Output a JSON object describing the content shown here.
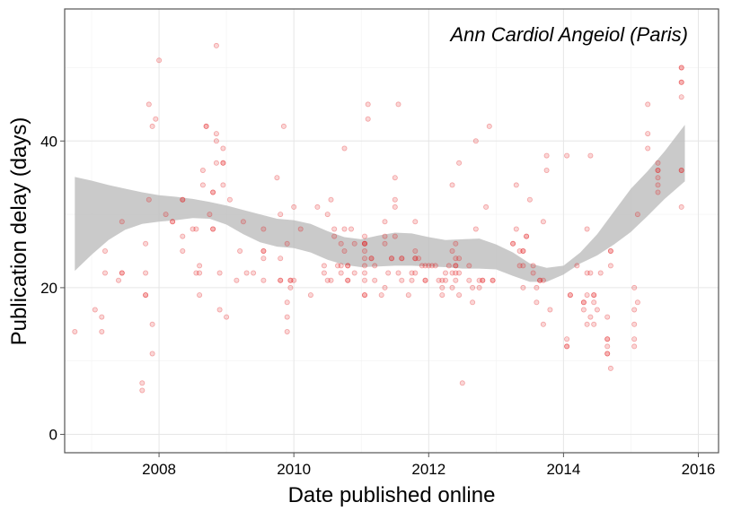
{
  "chart_data": {
    "type": "scatter",
    "annotation": "Ann Cardiol Angeiol (Paris)",
    "xlabel": "Date published online",
    "ylabel": "Publication delay (days)",
    "xlim": [
      2006.6,
      2016.3
    ],
    "ylim": [
      -2.5,
      58
    ],
    "x_ticks": [
      2008,
      2010,
      2012,
      2014,
      2016
    ],
    "y_ticks": [
      0,
      20,
      40
    ],
    "grid": true,
    "point_color": "#e31a1c",
    "band_color": "#bdbdbd",
    "panel_border_color": "#555555",
    "points": [
      [
        2006.75,
        14
      ],
      [
        2007.05,
        17
      ],
      [
        2007.15,
        16
      ],
      [
        2007.15,
        14
      ],
      [
        2007.2,
        25
      ],
      [
        2007.2,
        22
      ],
      [
        2007.4,
        21
      ],
      [
        2007.45,
        29
      ],
      [
        2007.45,
        22
      ],
      [
        2007.45,
        22
      ],
      [
        2007.75,
        7
      ],
      [
        2007.75,
        6
      ],
      [
        2007.8,
        26
      ],
      [
        2007.8,
        22
      ],
      [
        2007.8,
        19
      ],
      [
        2007.8,
        19
      ],
      [
        2007.85,
        32
      ],
      [
        2007.85,
        45
      ],
      [
        2007.9,
        42
      ],
      [
        2007.9,
        15
      ],
      [
        2007.9,
        11
      ],
      [
        2007.95,
        43
      ],
      [
        2008.0,
        51
      ],
      [
        2008.1,
        30
      ],
      [
        2008.2,
        29
      ],
      [
        2008.2,
        29
      ],
      [
        2008.35,
        32
      ],
      [
        2008.35,
        32
      ],
      [
        2008.35,
        27
      ],
      [
        2008.35,
        25
      ],
      [
        2008.5,
        28
      ],
      [
        2008.55,
        28
      ],
      [
        2008.55,
        22
      ],
      [
        2008.6,
        22
      ],
      [
        2008.6,
        19
      ],
      [
        2008.6,
        23
      ],
      [
        2008.65,
        34
      ],
      [
        2008.65,
        36
      ],
      [
        2008.7,
        42
      ],
      [
        2008.7,
        42
      ],
      [
        2008.75,
        30
      ],
      [
        2008.8,
        33
      ],
      [
        2008.8,
        33
      ],
      [
        2008.8,
        28
      ],
      [
        2008.8,
        28
      ],
      [
        2008.85,
        41
      ],
      [
        2008.85,
        37
      ],
      [
        2008.85,
        40
      ],
      [
        2008.85,
        53
      ],
      [
        2008.9,
        17
      ],
      [
        2008.9,
        22
      ],
      [
        2008.95,
        37
      ],
      [
        2008.95,
        37
      ],
      [
        2008.95,
        34
      ],
      [
        2008.95,
        39
      ],
      [
        2009.0,
        16
      ],
      [
        2009.05,
        32
      ],
      [
        2009.15,
        21
      ],
      [
        2009.2,
        25
      ],
      [
        2009.25,
        29
      ],
      [
        2009.3,
        22
      ],
      [
        2009.4,
        22
      ],
      [
        2009.55,
        28
      ],
      [
        2009.55,
        25
      ],
      [
        2009.55,
        25
      ],
      [
        2009.55,
        24
      ],
      [
        2009.55,
        21
      ],
      [
        2009.75,
        35
      ],
      [
        2009.8,
        30
      ],
      [
        2009.8,
        24
      ],
      [
        2009.8,
        21
      ],
      [
        2009.8,
        21
      ],
      [
        2009.85,
        42
      ],
      [
        2009.9,
        14
      ],
      [
        2009.9,
        16
      ],
      [
        2009.9,
        18
      ],
      [
        2009.9,
        26
      ],
      [
        2009.95,
        21
      ],
      [
        2009.95,
        21
      ],
      [
        2009.95,
        20
      ],
      [
        2010.0,
        31
      ],
      [
        2010.0,
        21
      ],
      [
        2010.1,
        28
      ],
      [
        2010.25,
        19
      ],
      [
        2010.35,
        31
      ],
      [
        2010.45,
        23
      ],
      [
        2010.45,
        22
      ],
      [
        2010.5,
        30
      ],
      [
        2010.5,
        21
      ],
      [
        2010.55,
        32
      ],
      [
        2010.55,
        21
      ],
      [
        2010.6,
        27
      ],
      [
        2010.6,
        28
      ],
      [
        2010.65,
        23
      ],
      [
        2010.7,
        22
      ],
      [
        2010.7,
        23
      ],
      [
        2010.7,
        26
      ],
      [
        2010.75,
        25
      ],
      [
        2010.75,
        28
      ],
      [
        2010.75,
        39
      ],
      [
        2010.8,
        23
      ],
      [
        2010.8,
        23
      ],
      [
        2010.8,
        21
      ],
      [
        2010.8,
        21
      ],
      [
        2010.85,
        28
      ],
      [
        2010.9,
        22
      ],
      [
        2010.9,
        26
      ],
      [
        2011.05,
        24
      ],
      [
        2011.05,
        26
      ],
      [
        2011.05,
        26
      ],
      [
        2011.05,
        27
      ],
      [
        2011.05,
        26
      ],
      [
        2011.05,
        22
      ],
      [
        2011.05,
        21
      ],
      [
        2011.05,
        19
      ],
      [
        2011.05,
        19
      ],
      [
        2011.05,
        23
      ],
      [
        2011.05,
        25
      ],
      [
        2011.1,
        43
      ],
      [
        2011.1,
        45
      ],
      [
        2011.15,
        24
      ],
      [
        2011.15,
        24
      ],
      [
        2011.2,
        21
      ],
      [
        2011.2,
        23
      ],
      [
        2011.3,
        19
      ],
      [
        2011.35,
        20
      ],
      [
        2011.35,
        29
      ],
      [
        2011.35,
        27
      ],
      [
        2011.35,
        26
      ],
      [
        2011.4,
        22
      ],
      [
        2011.45,
        24
      ],
      [
        2011.45,
        24
      ],
      [
        2011.5,
        27
      ],
      [
        2011.5,
        31
      ],
      [
        2011.5,
        32
      ],
      [
        2011.5,
        35
      ],
      [
        2011.55,
        45
      ],
      [
        2011.55,
        22
      ],
      [
        2011.6,
        24
      ],
      [
        2011.6,
        24
      ],
      [
        2011.6,
        21
      ],
      [
        2011.7,
        19
      ],
      [
        2011.75,
        21
      ],
      [
        2011.75,
        22
      ],
      [
        2011.8,
        22
      ],
      [
        2011.8,
        25
      ],
      [
        2011.8,
        29
      ],
      [
        2011.8,
        24
      ],
      [
        2011.8,
        24
      ],
      [
        2011.85,
        24
      ],
      [
        2011.9,
        23
      ],
      [
        2011.95,
        23
      ],
      [
        2011.95,
        21
      ],
      [
        2011.95,
        21
      ],
      [
        2012.0,
        23
      ],
      [
        2012.05,
        23
      ],
      [
        2012.1,
        23
      ],
      [
        2012.15,
        21
      ],
      [
        2012.2,
        19
      ],
      [
        2012.2,
        20
      ],
      [
        2012.2,
        21
      ],
      [
        2012.25,
        22
      ],
      [
        2012.25,
        21
      ],
      [
        2012.3,
        23
      ],
      [
        2012.35,
        34
      ],
      [
        2012.35,
        22
      ],
      [
        2012.35,
        20
      ],
      [
        2012.35,
        25
      ],
      [
        2012.4,
        26
      ],
      [
        2012.4,
        24
      ],
      [
        2012.4,
        23
      ],
      [
        2012.4,
        23
      ],
      [
        2012.4,
        22
      ],
      [
        2012.4,
        21
      ],
      [
        2012.45,
        37
      ],
      [
        2012.45,
        19
      ],
      [
        2012.45,
        24
      ],
      [
        2012.45,
        22
      ],
      [
        2012.5,
        7
      ],
      [
        2012.6,
        21
      ],
      [
        2012.6,
        23
      ],
      [
        2012.65,
        18
      ],
      [
        2012.65,
        20
      ],
      [
        2012.7,
        40
      ],
      [
        2012.7,
        28
      ],
      [
        2012.75,
        21
      ],
      [
        2012.75,
        20
      ],
      [
        2012.8,
        21
      ],
      [
        2012.8,
        21
      ],
      [
        2012.85,
        31
      ],
      [
        2012.9,
        42
      ],
      [
        2012.95,
        21
      ],
      [
        2012.95,
        21
      ],
      [
        2013.25,
        26
      ],
      [
        2013.25,
        26
      ],
      [
        2013.3,
        34
      ],
      [
        2013.3,
        28
      ],
      [
        2013.35,
        25
      ],
      [
        2013.35,
        23
      ],
      [
        2013.4,
        20
      ],
      [
        2013.4,
        25
      ],
      [
        2013.4,
        25
      ],
      [
        2013.4,
        23
      ],
      [
        2013.45,
        27
      ],
      [
        2013.45,
        27
      ],
      [
        2013.5,
        32
      ],
      [
        2013.55,
        22
      ],
      [
        2013.55,
        23
      ],
      [
        2013.6,
        18
      ],
      [
        2013.6,
        20
      ],
      [
        2013.65,
        21
      ],
      [
        2013.65,
        21
      ],
      [
        2013.7,
        15
      ],
      [
        2013.7,
        29
      ],
      [
        2013.7,
        21
      ],
      [
        2013.75,
        36
      ],
      [
        2013.75,
        38
      ],
      [
        2013.8,
        17
      ],
      [
        2014.05,
        38
      ],
      [
        2014.05,
        13
      ],
      [
        2014.05,
        12
      ],
      [
        2014.05,
        12
      ],
      [
        2014.1,
        19
      ],
      [
        2014.1,
        19
      ],
      [
        2014.2,
        23
      ],
      [
        2014.3,
        18
      ],
      [
        2014.3,
        18
      ],
      [
        2014.3,
        17
      ],
      [
        2014.35,
        22
      ],
      [
        2014.35,
        28
      ],
      [
        2014.35,
        15
      ],
      [
        2014.35,
        19
      ],
      [
        2014.4,
        16
      ],
      [
        2014.4,
        38
      ],
      [
        2014.4,
        22
      ],
      [
        2014.45,
        19
      ],
      [
        2014.45,
        19
      ],
      [
        2014.45,
        18
      ],
      [
        2014.45,
        15
      ],
      [
        2014.5,
        17
      ],
      [
        2014.55,
        22
      ],
      [
        2014.65,
        11
      ],
      [
        2014.65,
        11
      ],
      [
        2014.65,
        12
      ],
      [
        2014.65,
        13
      ],
      [
        2014.65,
        13
      ],
      [
        2014.65,
        16
      ],
      [
        2014.7,
        9
      ],
      [
        2014.7,
        23
      ],
      [
        2014.7,
        25
      ],
      [
        2014.7,
        25
      ],
      [
        2015.05,
        20
      ],
      [
        2015.05,
        17
      ],
      [
        2015.05,
        15
      ],
      [
        2015.05,
        13
      ],
      [
        2015.05,
        12
      ],
      [
        2015.1,
        30
      ],
      [
        2015.1,
        18
      ],
      [
        2015.25,
        45
      ],
      [
        2015.25,
        39
      ],
      [
        2015.25,
        41
      ],
      [
        2015.4,
        35
      ],
      [
        2015.4,
        34
      ],
      [
        2015.4,
        33
      ],
      [
        2015.4,
        37
      ],
      [
        2015.4,
        36
      ],
      [
        2015.4,
        36
      ],
      [
        2015.75,
        48
      ],
      [
        2015.75,
        48
      ],
      [
        2015.75,
        46
      ],
      [
        2015.75,
        50
      ],
      [
        2015.75,
        50
      ],
      [
        2015.75,
        36
      ],
      [
        2015.75,
        31
      ],
      [
        2015.75,
        36
      ]
    ],
    "smooth_lower": [
      [
        2006.75,
        22.3
      ],
      [
        2007,
        24.5
      ],
      [
        2007.25,
        26.5
      ],
      [
        2007.5,
        27.9
      ],
      [
        2007.75,
        28.7
      ],
      [
        2008,
        29.0
      ],
      [
        2008.25,
        29.2
      ],
      [
        2008.5,
        29.5
      ],
      [
        2008.75,
        29.4
      ],
      [
        2009,
        28.6
      ],
      [
        2009.25,
        27.3
      ],
      [
        2009.5,
        26.2
      ],
      [
        2009.75,
        25.6
      ],
      [
        2010,
        25.4
      ],
      [
        2010.25,
        24.8
      ],
      [
        2010.5,
        23.8
      ],
      [
        2010.75,
        23.1
      ],
      [
        2011,
        22.8
      ],
      [
        2011.25,
        22.9
      ],
      [
        2011.5,
        23.0
      ],
      [
        2011.75,
        23.0
      ],
      [
        2012,
        22.9
      ],
      [
        2012.25,
        22.8
      ],
      [
        2012.5,
        22.6
      ],
      [
        2012.75,
        22.6
      ],
      [
        2013,
        22.5
      ],
      [
        2013.25,
        21.6
      ],
      [
        2013.5,
        20.8
      ],
      [
        2013.75,
        20.8
      ],
      [
        2014,
        21.8
      ],
      [
        2014.25,
        23.3
      ],
      [
        2014.5,
        24.4
      ],
      [
        2014.75,
        25.9
      ],
      [
        2015,
        27.6
      ],
      [
        2015.25,
        29.8
      ],
      [
        2015.5,
        32.1
      ],
      [
        2015.8,
        34.5
      ]
    ],
    "smooth_upper": [
      [
        2006.75,
        35.1
      ],
      [
        2007,
        34.6
      ],
      [
        2007.25,
        34.0
      ],
      [
        2007.5,
        33.5
      ],
      [
        2007.75,
        33.0
      ],
      [
        2008,
        32.6
      ],
      [
        2008.25,
        32.4
      ],
      [
        2008.5,
        32.1
      ],
      [
        2008.75,
        31.7
      ],
      [
        2009,
        31.2
      ],
      [
        2009.25,
        30.6
      ],
      [
        2009.5,
        30.0
      ],
      [
        2009.75,
        29.4
      ],
      [
        2010,
        29.2
      ],
      [
        2010.25,
        28.7
      ],
      [
        2010.5,
        27.7
      ],
      [
        2010.75,
        26.9
      ],
      [
        2011,
        26.6
      ],
      [
        2011.25,
        27.1
      ],
      [
        2011.5,
        27.5
      ],
      [
        2011.75,
        27.4
      ],
      [
        2012,
        26.9
      ],
      [
        2012.25,
        26.5
      ],
      [
        2012.5,
        26.6
      ],
      [
        2012.75,
        26.7
      ],
      [
        2013,
        25.9
      ],
      [
        2013.25,
        24.8
      ],
      [
        2013.5,
        23.3
      ],
      [
        2013.75,
        22.7
      ],
      [
        2014,
        23.0
      ],
      [
        2014.25,
        24.8
      ],
      [
        2014.5,
        27.3
      ],
      [
        2014.75,
        30.4
      ],
      [
        2015,
        33.5
      ],
      [
        2015.25,
        35.9
      ],
      [
        2015.5,
        38.6
      ],
      [
        2015.8,
        42.2
      ]
    ]
  }
}
